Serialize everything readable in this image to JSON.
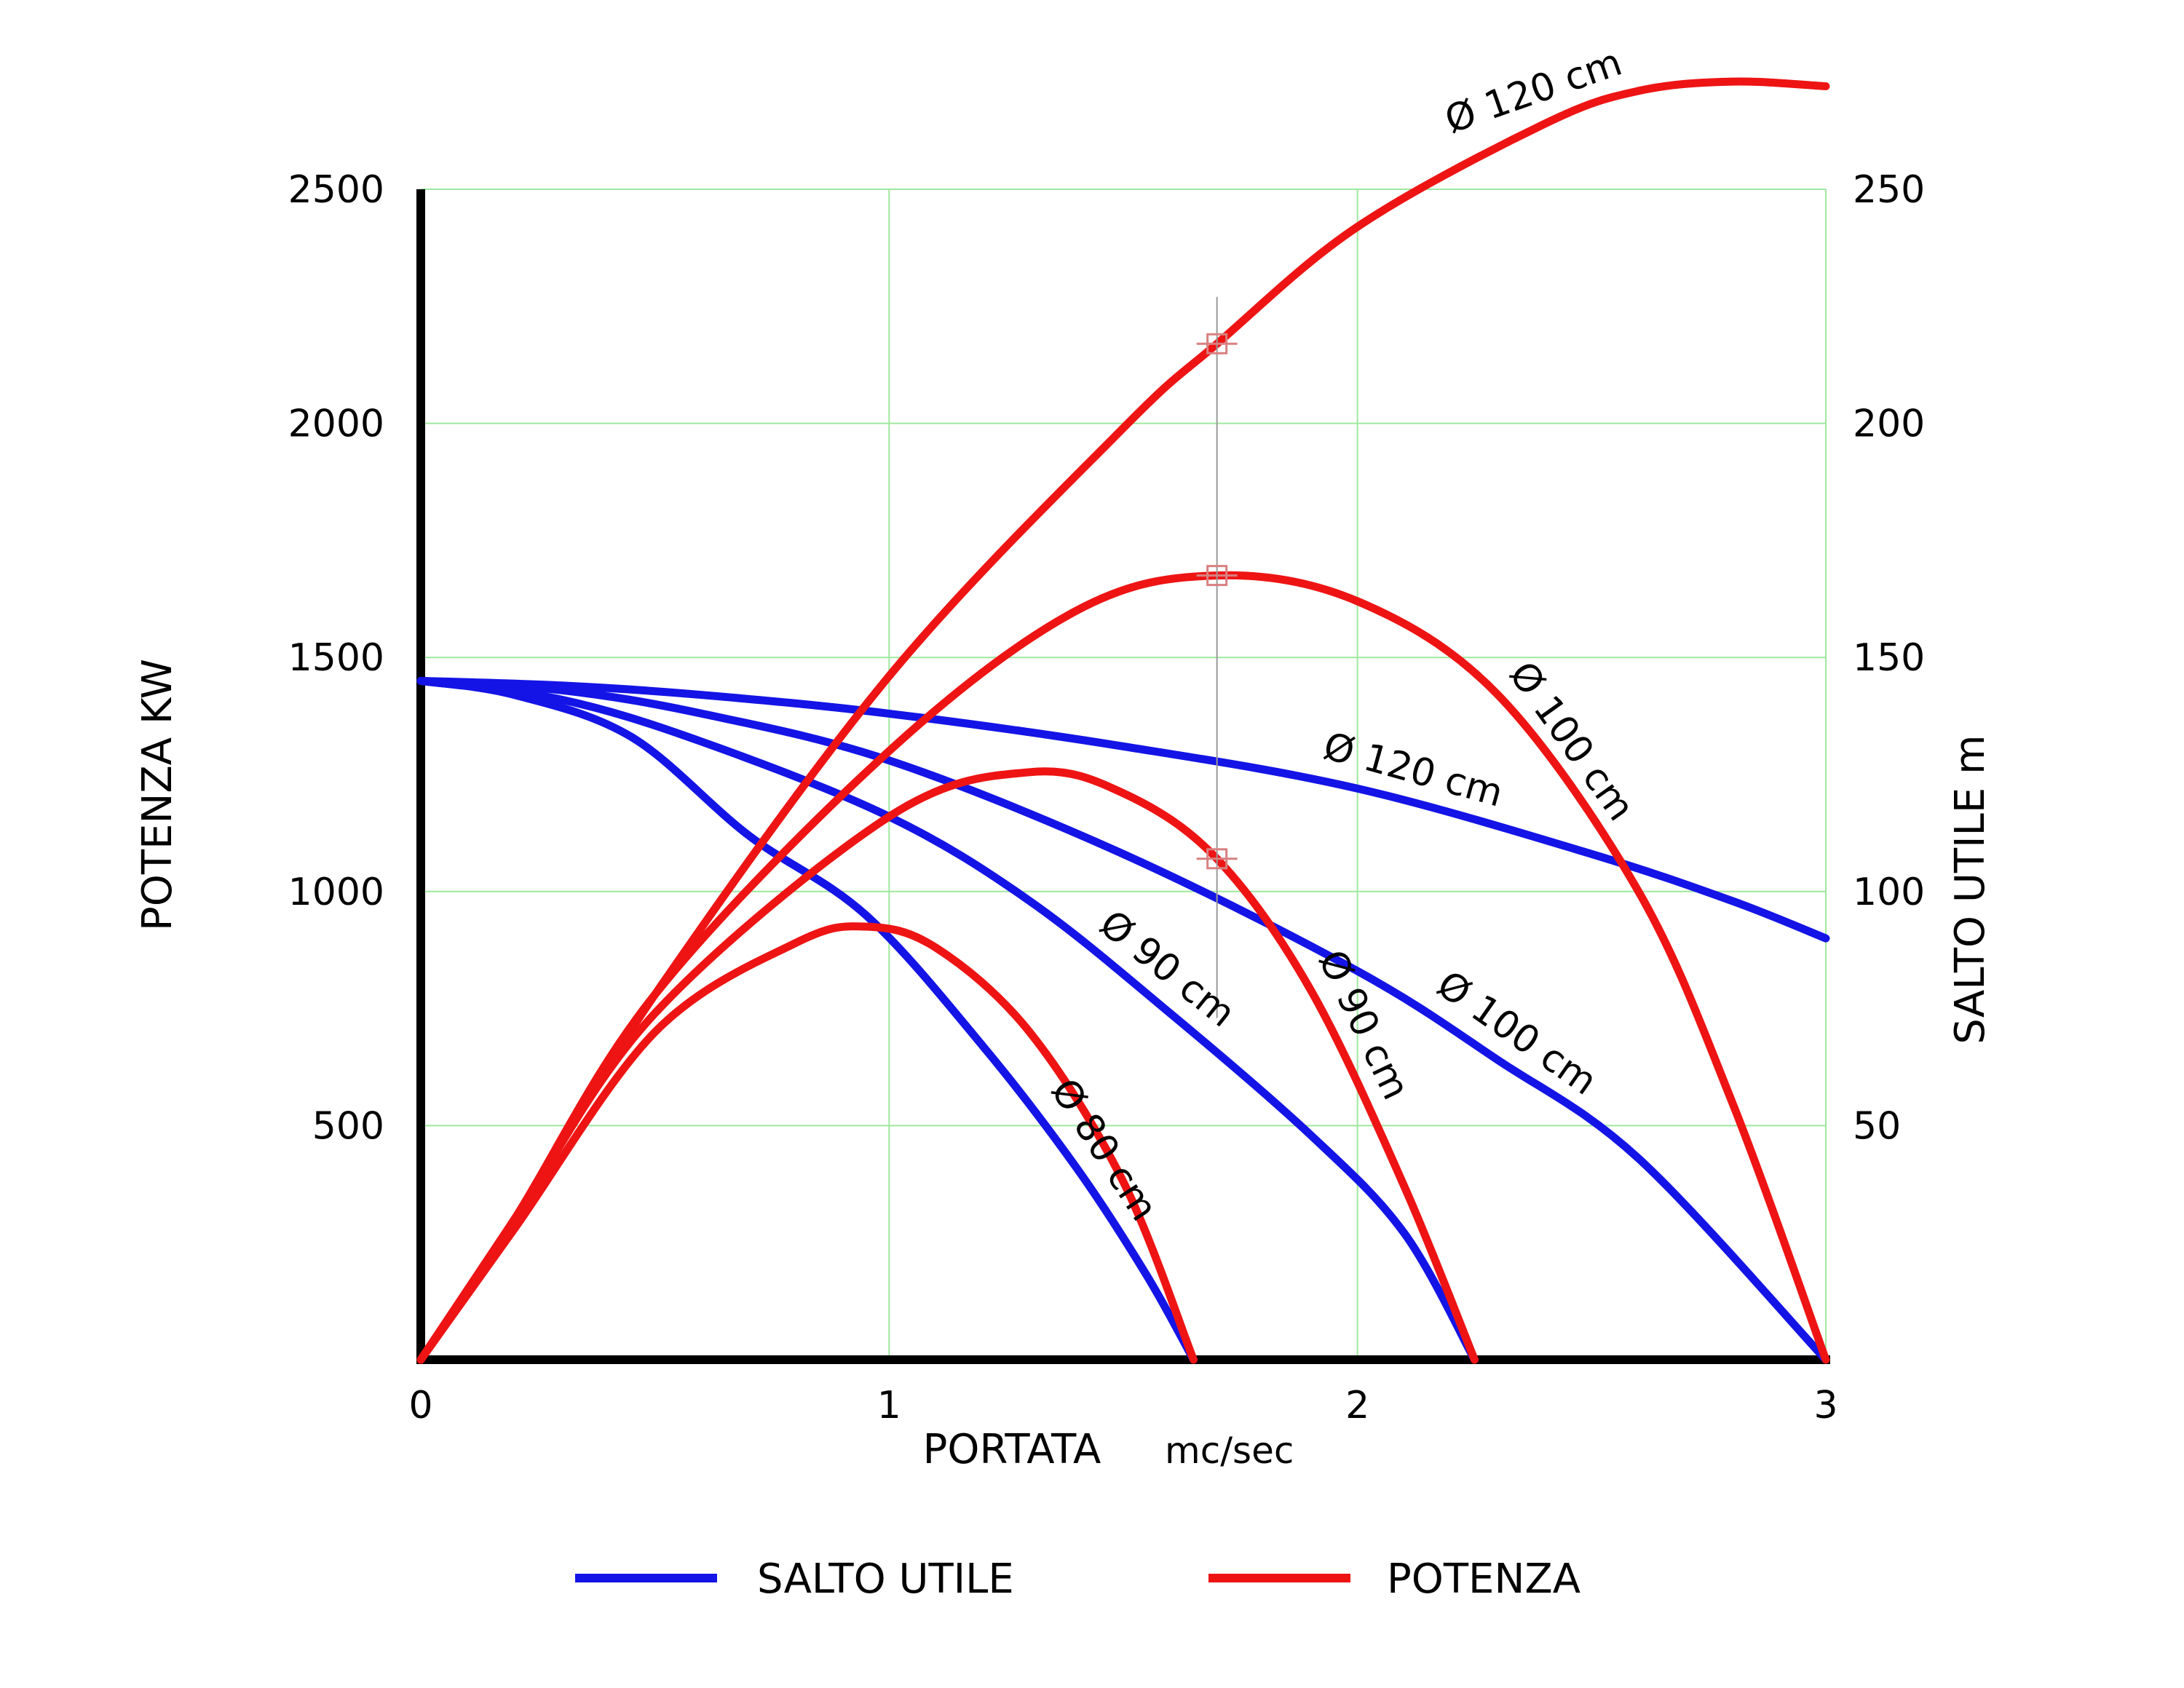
{
  "chart_data": {
    "type": "line",
    "x_axis": {
      "label": "PORTATA",
      "unit": "mc/sec",
      "range": [
        0,
        3
      ],
      "ticks": [
        "0",
        "1",
        "2",
        "3"
      ]
    },
    "y_axis_left": {
      "label": "POTENZA KW",
      "range": [
        0,
        2500
      ],
      "ticks": [
        "500",
        "1000",
        "1500",
        "2000",
        "2500"
      ]
    },
    "y_axis_right": {
      "label": "SALTO UTILE m",
      "range": [
        0,
        250
      ],
      "ticks": [
        "50",
        "100",
        "150",
        "200",
        "250"
      ]
    },
    "grid": true,
    "legend_position": "bottom",
    "legend": [
      {
        "label": "SALTO UTILE",
        "color": "#1414e6"
      },
      {
        "label": "POTENZA",
        "color": "#ee1414"
      }
    ],
    "series": [
      {
        "group": "salto",
        "axis": "right",
        "color": "#1414e6",
        "label": "Ø 120 cm",
        "x": [
          0,
          0.3,
          0.6,
          1.0,
          1.5,
          2.0,
          2.5,
          2.8,
          3.0
        ],
        "y": [
          145,
          144,
          142,
          138,
          131,
          122,
          108,
          98,
          90
        ]
      },
      {
        "group": "salto",
        "axis": "right",
        "color": "#1414e6",
        "label": "Ø 100 cm",
        "x": [
          0,
          0.3,
          0.6,
          1.0,
          1.5,
          2.0,
          2.3,
          2.6,
          3.0
        ],
        "y": [
          145,
          143,
          138,
          128,
          108,
          83,
          64,
          43,
          0
        ]
      },
      {
        "group": "salto",
        "axis": "right",
        "color": "#1414e6",
        "label": "Ø 90 cm",
        "x": [
          0,
          0.3,
          0.6,
          1.0,
          1.3,
          1.6,
          1.9,
          2.1,
          2.25
        ],
        "y": [
          145,
          141,
          132,
          116,
          98,
          74,
          48,
          27,
          0
        ]
      },
      {
        "group": "salto",
        "axis": "right",
        "color": "#1414e6",
        "label": "Ø 80 cm",
        "x": [
          0,
          0.2,
          0.45,
          0.7,
          0.95,
          1.2,
          1.4,
          1.55,
          1.65
        ],
        "y": [
          145,
          142,
          133,
          112,
          95,
          67,
          41,
          18,
          0
        ]
      },
      {
        "group": "potenza",
        "axis": "left",
        "color": "#ee1414",
        "label": "Ø 120 cm",
        "x": [
          0,
          0.2,
          0.5,
          1.0,
          1.5,
          1.7,
          2.0,
          2.4,
          2.6,
          2.8,
          3.0
        ],
        "y": [
          0,
          300,
          780,
          1460,
          1990,
          2170,
          2420,
          2640,
          2710,
          2730,
          2720
        ]
      },
      {
        "group": "potenza",
        "axis": "left",
        "color": "#ee1414",
        "label": "Ø 100 cm",
        "x": [
          0,
          0.2,
          0.5,
          1.0,
          1.4,
          1.7,
          2.0,
          2.3,
          2.6,
          2.8,
          3.0
        ],
        "y": [
          0,
          300,
          780,
          1300,
          1600,
          1675,
          1620,
          1420,
          1000,
          550,
          0
        ]
      },
      {
        "group": "potenza",
        "axis": "left",
        "color": "#ee1414",
        "label": "Ø 90 cm",
        "x": [
          0,
          0.2,
          0.5,
          1.0,
          1.3,
          1.5,
          1.7,
          1.9,
          2.1,
          2.25
        ],
        "y": [
          0,
          300,
          740,
          1160,
          1255,
          1210,
          1070,
          790,
          370,
          0
        ]
      },
      {
        "group": "potenza",
        "axis": "left",
        "color": "#ee1414",
        "label": "Ø 80 cm",
        "x": [
          0,
          0.2,
          0.5,
          0.8,
          0.95,
          1.1,
          1.3,
          1.5,
          1.65
        ],
        "y": [
          0,
          280,
          700,
          890,
          925,
          880,
          700,
          380,
          0
        ]
      }
    ],
    "markers": [
      {
        "x": 1.7,
        "y": 2170,
        "axis": "left"
      },
      {
        "x": 1.7,
        "y": 1675,
        "axis": "left"
      },
      {
        "x": 1.7,
        "y": 1070,
        "axis": "left"
      }
    ],
    "curve_labels": [
      {
        "text": "Ø 120 cm",
        "series_group": "potenza",
        "at_x": 2.4
      },
      {
        "text": "Ø 100 cm",
        "series_group": "potenza",
        "at_x": 2.4
      },
      {
        "text": "Ø 120 cm",
        "series_group": "salto",
        "at_x": 2.1
      },
      {
        "text": "Ø 100 cm",
        "series_group": "salto",
        "at_x": 2.3
      },
      {
        "text": "Ø 90 cm",
        "series_group": "salto",
        "at_x": 1.55
      },
      {
        "text": "Ø 90 cm",
        "series_group": "potenza",
        "at_x": 1.95
      },
      {
        "text": "Ø 80 cm",
        "series_group": "salto",
        "at_x": 1.4
      }
    ]
  }
}
